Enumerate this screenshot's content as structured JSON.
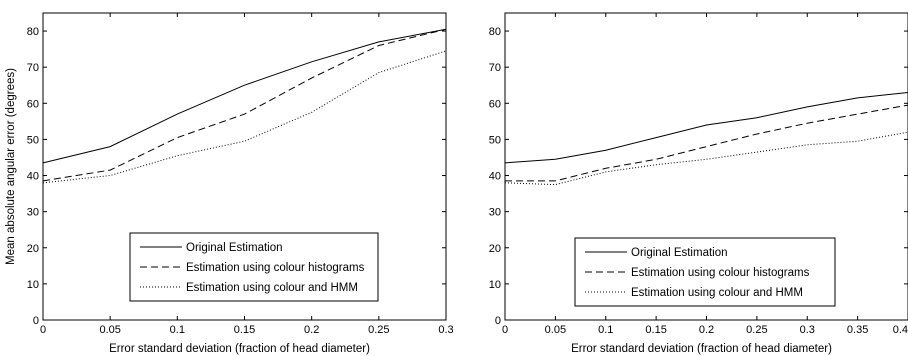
{
  "chart_data": [
    {
      "type": "line",
      "title": "",
      "xlabel": "Error standard deviation (fraction of head diameter)",
      "ylabel": "Mean absolute angular error (degrees)",
      "xlim": [
        0,
        0.3
      ],
      "ylim": [
        0,
        85
      ],
      "xticks": [
        0,
        0.05,
        0.1,
        0.15,
        0.2,
        0.25,
        0.3
      ],
      "xtick_labels": [
        "0",
        "0.05",
        "0.1",
        "0.15",
        "0.2",
        "0.25",
        "0.3"
      ],
      "yticks": [
        0,
        10,
        20,
        30,
        40,
        50,
        60,
        70,
        80
      ],
      "ytick_labels": [
        "0",
        "10",
        "20",
        "30",
        "40",
        "50",
        "60",
        "70",
        "80"
      ],
      "grid": false,
      "legend_position": "bottom-center",
      "x": [
        0,
        0.05,
        0.1,
        0.15,
        0.2,
        0.25,
        0.3
      ],
      "series": [
        {
          "name": "Original Estimation",
          "style": "solid",
          "values": [
            43.5,
            48,
            57,
            65,
            71.5,
            77,
            80.5
          ]
        },
        {
          "name": "Estimation using colour histograms",
          "style": "dashed",
          "values": [
            38.5,
            41.5,
            50.5,
            57,
            67,
            76,
            80.5
          ]
        },
        {
          "name": "Estimation using colour and HMM",
          "style": "dotted",
          "values": [
            38,
            40,
            45.5,
            49.5,
            57.5,
            68.5,
            74.5
          ]
        }
      ]
    },
    {
      "type": "line",
      "title": "",
      "xlabel": "Error standard deviation (fraction of head diameter)",
      "ylabel": "",
      "xlim": [
        0,
        0.4
      ],
      "ylim": [
        0,
        85
      ],
      "xticks": [
        0,
        0.05,
        0.1,
        0.15,
        0.2,
        0.25,
        0.3,
        0.35,
        0.4
      ],
      "xtick_labels": [
        "0",
        "0.05",
        "0.1",
        "0.15",
        "0.2",
        "0.25",
        "0.3",
        "0.35",
        "0.4"
      ],
      "yticks": [
        0,
        10,
        20,
        30,
        40,
        50,
        60,
        70,
        80
      ],
      "ytick_labels": [
        "0",
        "10",
        "20",
        "30",
        "40",
        "50",
        "60",
        "70",
        "80"
      ],
      "grid": false,
      "legend_position": "bottom-center",
      "x": [
        0,
        0.05,
        0.1,
        0.15,
        0.2,
        0.25,
        0.3,
        0.35,
        0.4
      ],
      "series": [
        {
          "name": "Original Estimation",
          "style": "solid",
          "values": [
            43.5,
            44.5,
            47,
            50.5,
            54,
            56,
            59,
            61.5,
            63
          ]
        },
        {
          "name": "Estimation using colour histograms",
          "style": "dashed",
          "values": [
            38.5,
            38.5,
            42,
            44.5,
            48,
            51.5,
            54.5,
            57,
            59.5
          ]
        },
        {
          "name": "Estimation using colour and HMM",
          "style": "dotted",
          "values": [
            38,
            37.5,
            41,
            43,
            44.5,
            46.5,
            48.5,
            49.5,
            52
          ]
        }
      ]
    }
  ]
}
